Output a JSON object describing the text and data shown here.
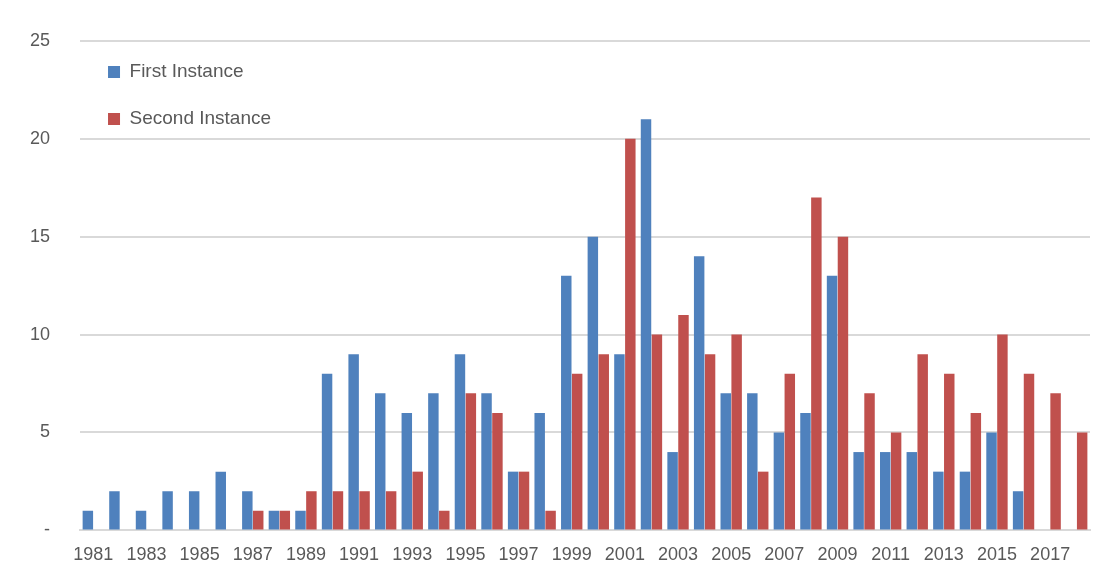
{
  "chart_data": {
    "type": "bar",
    "categories": [
      "1981",
      null,
      "1983",
      null,
      "1985",
      null,
      "1987",
      null,
      "1989",
      null,
      "1991",
      null,
      "1993",
      null,
      "1995",
      null,
      "1997",
      null,
      "1999",
      null,
      "2001",
      null,
      "2003",
      null,
      "2005",
      null,
      "2007",
      null,
      "2009",
      null,
      "2011",
      null,
      "2013",
      null,
      "2015",
      null,
      "2017",
      null
    ],
    "series": [
      {
        "name": "First Instance",
        "color": "#4f81bd",
        "values": [
          1,
          2,
          1,
          2,
          2,
          3,
          2,
          1,
          1,
          8,
          9,
          7,
          6,
          7,
          9,
          7,
          3,
          6,
          13,
          15,
          9,
          21,
          4,
          14,
          7,
          7,
          5,
          6,
          13,
          4,
          4,
          4,
          3,
          3,
          5,
          2,
          0,
          0
        ]
      },
      {
        "name": "Second Instance",
        "color": "#c0504d",
        "values": [
          0,
          0,
          0,
          0,
          0,
          0,
          1,
          1,
          2,
          2,
          2,
          2,
          3,
          1,
          7,
          6,
          3,
          1,
          8,
          9,
          20,
          10,
          11,
          9,
          10,
          3,
          8,
          17,
          15,
          7,
          5,
          9,
          8,
          6,
          10,
          8,
          7,
          5
        ]
      }
    ],
    "ylim": [
      0,
      25
    ],
    "yticks": [
      {
        "value": 0,
        "label": "-"
      },
      5,
      10,
      15,
      20,
      25
    ],
    "grid": "y",
    "legend": "top left"
  }
}
